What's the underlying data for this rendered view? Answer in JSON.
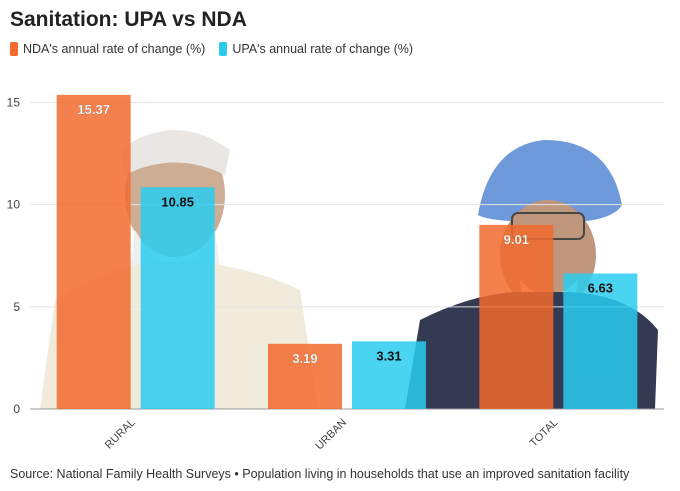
{
  "title": "Sanitation: UPA vs NDA",
  "source": "Source: National Family Health Surveys • Population living in households that use an improved sanitation facility",
  "colors": {
    "nda": "#f26a2e",
    "upa": "#29ccf0",
    "grid": "#e4e4e4",
    "axis": "#999999"
  },
  "chart_data": {
    "type": "bar",
    "title": "Sanitation: UPA vs NDA",
    "xlabel": "",
    "ylabel": "",
    "ylim": [
      0,
      16
    ],
    "yticks": [
      0,
      5,
      10,
      15
    ],
    "categories": [
      "RURAL",
      "URBAN",
      "TOTAL"
    ],
    "series": [
      {
        "name": "NDA's annual rate of change (%)",
        "key": "nda",
        "values": [
          15.37,
          3.19,
          9.01
        ]
      },
      {
        "name": "UPA's annual rate of change (%)",
        "key": "upa",
        "values": [
          10.85,
          3.31,
          6.63
        ]
      }
    ],
    "legend": "top-left"
  }
}
